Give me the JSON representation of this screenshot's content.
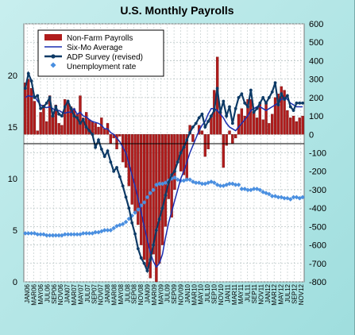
{
  "chart_data": {
    "type": "bar+line+scatter",
    "title": "U.S. Monthly Payrolls",
    "xlabel": "",
    "ylabel_left": "",
    "ylabel_right": "",
    "ylim_left": [
      0,
      25
    ],
    "ylim_right": [
      -800,
      600
    ],
    "yticks_left": [
      "0",
      "5",
      "10",
      "15",
      "20"
    ],
    "yticks_right": [
      "-800",
      "-700",
      "-600",
      "-500",
      "-400",
      "-300",
      "-200",
      "-100",
      "0",
      "100",
      "200",
      "300",
      "400",
      "500",
      "600"
    ],
    "grid": true,
    "legend_position": "top-left",
    "colors": {
      "plot_bg": "#ffffff",
      "bars": "#b01c1c",
      "six_mo": "#1a2fb0",
      "adp": "#0d3a66",
      "unemployment": "#4a8fe0",
      "grid": "#b8c4c4"
    },
    "x_labels": [
      "JAN06",
      "MAR06",
      "MAY06",
      "JUL06",
      "SEP06",
      "NOV06",
      "JAN07",
      "MAR07",
      "MAY07",
      "JUL07",
      "SEP07",
      "NOV07",
      "JAN08",
      "MAR08",
      "MAY08",
      "JUL08",
      "SEP08",
      "NOV08",
      "JAN09",
      "MAR09",
      "MAY09",
      "JUL09",
      "SEP09",
      "NOV09",
      "JAN10",
      "MAR10",
      "MAY10",
      "JUL10",
      "SEP10",
      "NOV10",
      "JAN11",
      "MAR11",
      "MAY11",
      "JUL11",
      "SEP11",
      "NOV11",
      "JAN12",
      "MAR12",
      "MAY12",
      "JUL12",
      "SEP12",
      "NOV12"
    ],
    "series": [
      {
        "name": "Non-Farm Payrolls",
        "axis": "right",
        "kind": "bar",
        "values": [
          280,
          300,
          250,
          180,
          20,
          120,
          160,
          70,
          210,
          100,
          160,
          60,
          50,
          190,
          170,
          150,
          140,
          110,
          210,
          90,
          120,
          80,
          70,
          60,
          40,
          90,
          30,
          60,
          -50,
          -20,
          -80,
          -10,
          -150,
          -180,
          -280,
          -380,
          -420,
          -490,
          -600,
          -680,
          -720,
          -780,
          -650,
          -800,
          -700,
          -600,
          -500,
          -350,
          -450,
          -300,
          -150,
          -200,
          -220,
          -250,
          50,
          -40,
          0,
          50,
          20,
          -120,
          -80,
          100,
          240,
          420,
          120,
          -180,
          -60,
          20,
          -50,
          -20,
          110,
          140,
          100,
          190,
          190,
          120,
          90,
          170,
          80,
          170,
          60,
          110,
          200,
          220,
          260,
          240,
          130,
          90,
          100,
          70,
          90,
          100
        ]
      },
      {
        "name": "Six-Mo Average",
        "axis": "right",
        "kind": "line",
        "values": [
          200,
          210,
          205,
          210,
          180,
          160,
          150,
          145,
          150,
          140,
          130,
          130,
          120,
          115,
          120,
          120,
          140,
          110,
          120,
          100,
          95,
          80,
          70,
          65,
          60,
          50,
          30,
          30,
          10,
          0,
          -20,
          -40,
          -70,
          -100,
          -160,
          -220,
          -280,
          -350,
          -420,
          -500,
          -570,
          -640,
          -690,
          -720,
          -700,
          -650,
          -560,
          -480,
          -420,
          -360,
          -300,
          -240,
          -200,
          -150,
          -100,
          -60,
          -20,
          20,
          50,
          70,
          110,
          140,
          140,
          130,
          110,
          90,
          60,
          40,
          30,
          20,
          40,
          60,
          80,
          100,
          130,
          140,
          150,
          150,
          140,
          130,
          140,
          150,
          160,
          170,
          190,
          200,
          190,
          170,
          160,
          150,
          150,
          150
        ]
      },
      {
        "name": "ADP Survey (revised)",
        "axis": "right",
        "kind": "line-marker",
        "values": [
          250,
          330,
          290,
          200,
          210,
          140,
          150,
          170,
          200,
          100,
          150,
          110,
          100,
          150,
          180,
          140,
          100,
          90,
          60,
          80,
          40,
          20,
          0,
          -70,
          -30,
          -80,
          -120,
          -90,
          -150,
          -200,
          -180,
          -230,
          -280,
          -340,
          -400,
          -480,
          -540,
          -620,
          -670,
          -700,
          -740,
          -680,
          -600,
          -520,
          -460,
          -400,
          -330,
          -260,
          -220,
          -200,
          -150,
          -100,
          -70,
          -30,
          10,
          40,
          60,
          90,
          110,
          40,
          70,
          100,
          130,
          250,
          120,
          180,
          100,
          150,
          60,
          140,
          200,
          220,
          170,
          150,
          240,
          120,
          140,
          170,
          200,
          170,
          200,
          230,
          280,
          160,
          220,
          190,
          210,
          150,
          130,
          170,
          170,
          170
        ]
      },
      {
        "name": "Unemployment rate",
        "axis": "left",
        "kind": "scatter",
        "values": [
          4.7,
          4.7,
          4.7,
          4.7,
          4.6,
          4.6,
          4.6,
          4.5,
          4.5,
          4.5,
          4.5,
          4.5,
          4.5,
          4.6,
          4.6,
          4.6,
          4.6,
          4.6,
          4.6,
          4.7,
          4.7,
          4.7,
          4.7,
          4.8,
          4.8,
          4.9,
          5.0,
          5.0,
          5.0,
          5.2,
          5.4,
          5.5,
          5.6,
          5.8,
          6.1,
          6.4,
          6.7,
          7.0,
          7.4,
          7.7,
          8.2,
          8.6,
          8.9,
          9.4,
          9.5,
          9.5,
          9.6,
          9.8,
          10.0,
          10.1,
          9.9,
          9.8,
          9.8,
          9.9,
          9.9,
          9.7,
          9.6,
          9.6,
          9.5,
          9.5,
          9.6,
          9.7,
          9.6,
          9.4,
          9.3,
          9.3,
          9.4,
          9.5,
          9.5,
          9.4,
          9.4,
          9.0,
          9.0,
          8.9,
          8.9,
          9.0,
          9.0,
          8.9,
          8.7,
          8.6,
          8.5,
          8.3,
          8.3,
          8.2,
          8.2,
          8.1,
          8.1,
          8.0,
          8.2,
          8.2,
          8.1,
          8.2
        ]
      }
    ]
  }
}
